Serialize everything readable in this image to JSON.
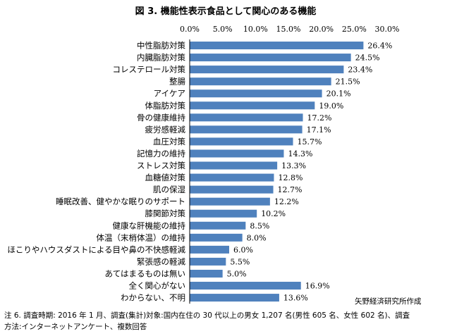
{
  "chart_data": {
    "type": "bar",
    "orientation": "horizontal",
    "title": "図 3.  機能性表示食品として関心のある機能",
    "categories": [
      "中性脂肪対策",
      "内臓脂肪対策",
      "コレステロール対策",
      "整腸",
      "アイケア",
      "体脂肪対策",
      "骨の健康維持",
      "疲労感軽減",
      "血圧対策",
      "記憶力の維持",
      "ストレス対策",
      "血糖値対策",
      "肌の保湿",
      "睡眠改善、健やかな眠りのサポート",
      "膝関節対策",
      "健康な肝機能の維持",
      "体温（末梢体温）の維持",
      "ほこりやハウスダストによる目や鼻の不快感軽減",
      "緊張感の軽減",
      "あてはまるものは無い",
      "全く関心がない",
      "わからない、不明"
    ],
    "values": [
      26.4,
      24.5,
      23.4,
      21.5,
      20.1,
      19.0,
      17.2,
      17.1,
      15.7,
      14.3,
      13.3,
      12.8,
      12.7,
      12.2,
      10.2,
      8.5,
      8.0,
      6.0,
      5.5,
      5.0,
      16.9,
      13.6
    ],
    "value_labels": [
      "26.4%",
      "24.5%",
      "23.4%",
      "21.5%",
      "20.1%",
      "19.0%",
      "17.2%",
      "17.1%",
      "15.7%",
      "14.3%",
      "13.3%",
      "12.8%",
      "12.7%",
      "12.2%",
      "10.2%",
      "8.5%",
      "8.0%",
      "6.0%",
      "5.5%",
      "5.0%",
      "16.9%",
      "13.6%"
    ],
    "xlim": [
      0,
      30
    ],
    "xticks": [
      "0.0%",
      "5.0%",
      "10.0%",
      "15.0%",
      "20.0%",
      "25.0%",
      "30.0%"
    ],
    "axis_position": "top",
    "grid": false,
    "bar_color": "#4F81BD",
    "source": "矢野経済研究所作成"
  },
  "footnote": {
    "line1": "注 6.  調査時期:  2016 年 1 月、調査(集計)対象:国内在住の 30 代以上の男女 1,207 名(男性 605 名、女性 602 名)、調査",
    "line2": "方法:インターネットアンケート、複数回答"
  }
}
